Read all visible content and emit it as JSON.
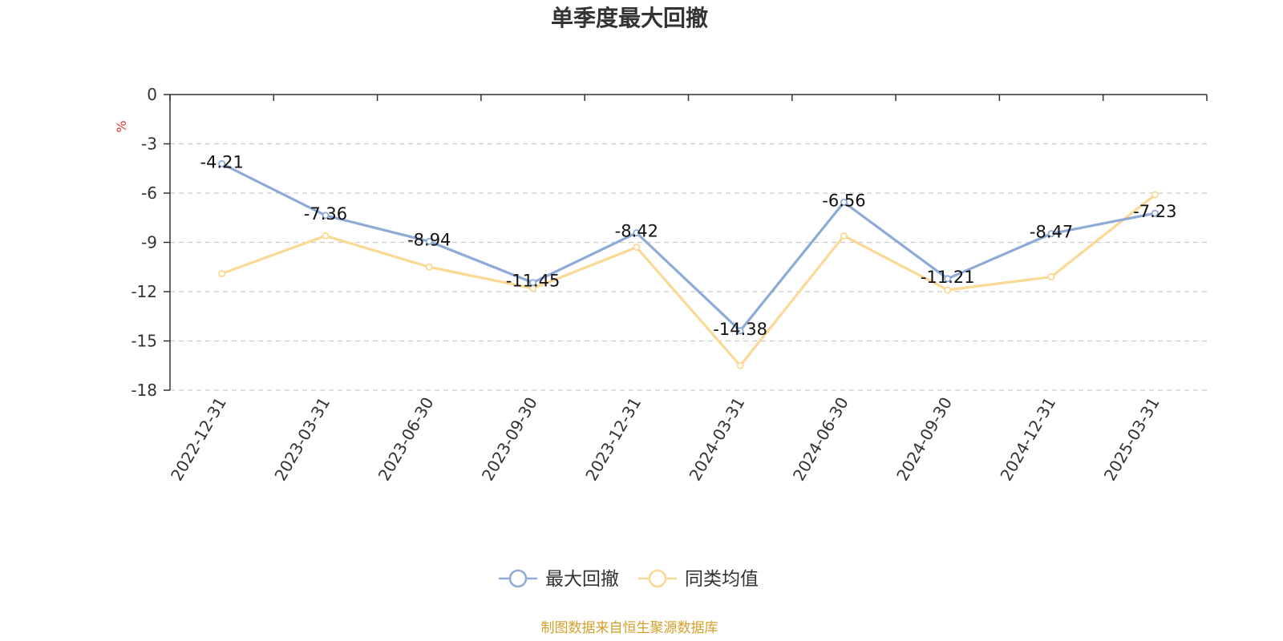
{
  "chart_data": {
    "type": "line",
    "title": "单季度最大回撤",
    "ylabel": "%",
    "ylim": [
      -18,
      0
    ],
    "yticks": [
      0,
      -3,
      -6,
      -9,
      -12,
      -15,
      -18
    ],
    "grid": true,
    "legend_position": "bottom-center",
    "categories": [
      "2022-12-31",
      "2023-03-31",
      "2023-06-30",
      "2023-09-30",
      "2023-12-31",
      "2024-03-31",
      "2024-06-30",
      "2024-09-30",
      "2024-12-31",
      "2025-03-31"
    ],
    "series": [
      {
        "name": "最大回撤",
        "color": "#8eabd8",
        "values": [
          -4.21,
          -7.36,
          -8.94,
          -11.45,
          -8.42,
          -14.38,
          -6.56,
          -11.21,
          -8.47,
          -7.23
        ],
        "show_labels": true
      },
      {
        "name": "同类均值",
        "color": "#fbd994",
        "values": [
          -10.9,
          -8.6,
          -10.5,
          -11.8,
          -9.3,
          -16.5,
          -8.6,
          -11.9,
          -11.1,
          -6.1
        ],
        "show_labels": false
      }
    ]
  },
  "footer": {
    "source": "制图数据来自恒生聚源数据库",
    "color": "#d4a02a"
  },
  "unit_color": "#e0312c"
}
